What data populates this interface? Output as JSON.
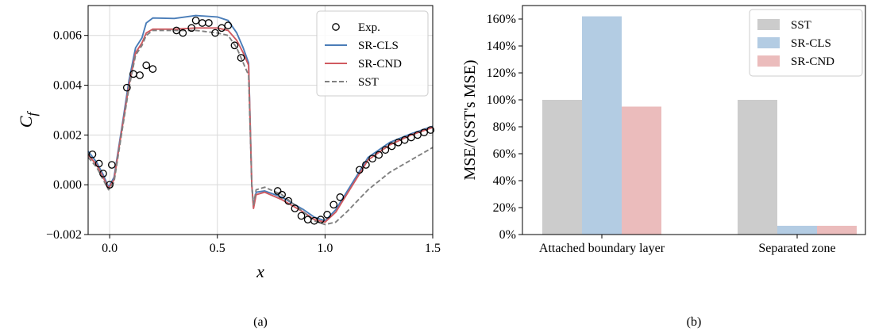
{
  "chart_data": [
    {
      "type": "line",
      "caption": "(a)",
      "xlabel": "x",
      "ylabel": "C",
      "ylabel_sub": "f",
      "xlim": [
        -0.1,
        1.5
      ],
      "ylim": [
        -0.002,
        0.0072
      ],
      "x_ticks": [
        0.0,
        0.5,
        1.0,
        1.5
      ],
      "x_tick_labels": [
        "0.0",
        "0.5",
        "1.0",
        "1.5"
      ],
      "y_ticks": [
        -0.002,
        0.0,
        0.002,
        0.004,
        0.006
      ],
      "y_tick_labels": [
        "−0.002",
        "0.000",
        "0.002",
        "0.004",
        "0.006"
      ],
      "grid": true,
      "legend_position": "top-right",
      "series": [
        {
          "name": "Exp.",
          "style": "markers",
          "color": "#000000",
          "points": [
            [
              -0.08,
              0.00122
            ],
            [
              -0.05,
              0.00085
            ],
            [
              -0.03,
              0.00045
            ],
            [
              0.0,
              0.0
            ],
            [
              0.01,
              0.0008
            ],
            [
              0.08,
              0.0039
            ],
            [
              0.11,
              0.00445
            ],
            [
              0.14,
              0.0044
            ],
            [
              0.17,
              0.0048
            ],
            [
              0.2,
              0.00465
            ],
            [
              0.31,
              0.0062
            ],
            [
              0.34,
              0.0061
            ],
            [
              0.38,
              0.0063
            ],
            [
              0.4,
              0.0066
            ],
            [
              0.43,
              0.0065
            ],
            [
              0.46,
              0.0065
            ],
            [
              0.49,
              0.0061
            ],
            [
              0.52,
              0.0063
            ],
            [
              0.55,
              0.0064
            ],
            [
              0.58,
              0.0056
            ],
            [
              0.61,
              0.0051
            ],
            [
              0.78,
              -0.00025
            ],
            [
              0.8,
              -0.0004
            ],
            [
              0.83,
              -0.00065
            ],
            [
              0.86,
              -0.00095
            ],
            [
              0.89,
              -0.00125
            ],
            [
              0.92,
              -0.0014
            ],
            [
              0.95,
              -0.00145
            ],
            [
              0.98,
              -0.0014
            ],
            [
              1.01,
              -0.0012
            ],
            [
              1.04,
              -0.0008
            ],
            [
              1.07,
              -0.0005
            ],
            [
              1.16,
              0.0006
            ],
            [
              1.19,
              0.0008
            ],
            [
              1.22,
              0.00105
            ],
            [
              1.25,
              0.0012
            ],
            [
              1.28,
              0.0014
            ],
            [
              1.31,
              0.00155
            ],
            [
              1.34,
              0.0017
            ],
            [
              1.37,
              0.0018
            ],
            [
              1.4,
              0.0019
            ],
            [
              1.43,
              0.002
            ],
            [
              1.46,
              0.0021
            ],
            [
              1.49,
              0.0022
            ]
          ]
        },
        {
          "name": "SR-CLS",
          "style": "solid",
          "color": "#4a7db8",
          "points": [
            [
              -0.1,
              0.00135
            ],
            [
              -0.06,
              0.0009
            ],
            [
              -0.03,
              0.0004
            ],
            [
              -0.005,
              -0.0001
            ],
            [
              0.02,
              0.0003
            ],
            [
              0.06,
              0.0025
            ],
            [
              0.09,
              0.0042
            ],
            [
              0.12,
              0.0055
            ],
            [
              0.15,
              0.0059
            ],
            [
              0.17,
              0.0065
            ],
            [
              0.2,
              0.0067
            ],
            [
              0.3,
              0.00668
            ],
            [
              0.4,
              0.0068
            ],
            [
              0.5,
              0.00674
            ],
            [
              0.55,
              0.0066
            ],
            [
              0.59,
              0.0061
            ],
            [
              0.62,
              0.0055
            ],
            [
              0.645,
              0.0049
            ],
            [
              0.66,
              0.0
            ],
            [
              0.668,
              -0.0009
            ],
            [
              0.68,
              -0.0003
            ],
            [
              0.72,
              -0.00025
            ],
            [
              0.8,
              -0.0005
            ],
            [
              0.9,
              -0.001
            ],
            [
              0.95,
              -0.0013
            ],
            [
              1.0,
              -0.00145
            ],
            [
              1.05,
              -0.001
            ],
            [
              1.1,
              -0.0003
            ],
            [
              1.15,
              0.0004
            ],
            [
              1.2,
              0.0011
            ],
            [
              1.3,
              0.0017
            ],
            [
              1.4,
              0.00205
            ],
            [
              1.5,
              0.00235
            ]
          ]
        },
        {
          "name": "SR-CND",
          "style": "solid",
          "color": "#d05a60",
          "points": [
            [
              -0.1,
              0.0012
            ],
            [
              -0.06,
              0.0008
            ],
            [
              -0.03,
              0.0003
            ],
            [
              -0.005,
              -0.00015
            ],
            [
              0.02,
              0.0002
            ],
            [
              0.06,
              0.0024
            ],
            [
              0.09,
              0.004
            ],
            [
              0.12,
              0.0053
            ],
            [
              0.15,
              0.0057
            ],
            [
              0.17,
              0.0061
            ],
            [
              0.2,
              0.00625
            ],
            [
              0.3,
              0.00625
            ],
            [
              0.4,
              0.0063
            ],
            [
              0.5,
              0.0063
            ],
            [
              0.55,
              0.0062
            ],
            [
              0.59,
              0.0058
            ],
            [
              0.62,
              0.0053
            ],
            [
              0.645,
              0.0048
            ],
            [
              0.66,
              0.0
            ],
            [
              0.668,
              -0.00095
            ],
            [
              0.68,
              -0.0004
            ],
            [
              0.72,
              -0.0003
            ],
            [
              0.8,
              -0.0006
            ],
            [
              0.9,
              -0.0011
            ],
            [
              0.95,
              -0.0014
            ],
            [
              1.0,
              -0.0015
            ],
            [
              1.05,
              -0.0011
            ],
            [
              1.1,
              -0.0004
            ],
            [
              1.15,
              0.0003
            ],
            [
              1.2,
              0.001
            ],
            [
              1.3,
              0.0016
            ],
            [
              1.4,
              0.002
            ],
            [
              1.5,
              0.0023
            ]
          ]
        },
        {
          "name": "SST",
          "style": "dashed",
          "color": "#808080",
          "points": [
            [
              -0.1,
              0.0011
            ],
            [
              -0.06,
              0.0007
            ],
            [
              -0.03,
              0.0002
            ],
            [
              -0.005,
              -0.0002
            ],
            [
              0.02,
              0.0001
            ],
            [
              0.06,
              0.0023
            ],
            [
              0.09,
              0.0039
            ],
            [
              0.12,
              0.0052
            ],
            [
              0.15,
              0.0056
            ],
            [
              0.17,
              0.006
            ],
            [
              0.2,
              0.0062
            ],
            [
              0.3,
              0.0062
            ],
            [
              0.4,
              0.0062
            ],
            [
              0.5,
              0.0061
            ],
            [
              0.55,
              0.006
            ],
            [
              0.59,
              0.0055
            ],
            [
              0.62,
              0.0049
            ],
            [
              0.645,
              0.0044
            ],
            [
              0.66,
              0.0
            ],
            [
              0.668,
              -0.0008
            ],
            [
              0.68,
              -0.0002
            ],
            [
              0.72,
              -0.0001
            ],
            [
              0.8,
              -0.0004
            ],
            [
              0.9,
              -0.0011
            ],
            [
              0.95,
              -0.00145
            ],
            [
              1.0,
              -0.0016
            ],
            [
              1.05,
              -0.0015
            ],
            [
              1.1,
              -0.0011
            ],
            [
              1.2,
              -0.0002
            ],
            [
              1.3,
              0.0005
            ],
            [
              1.4,
              0.001
            ],
            [
              1.5,
              0.0015
            ]
          ]
        }
      ]
    },
    {
      "type": "bar",
      "caption": "(b)",
      "xlabel": "",
      "ylabel": "MSE/(SST's MSE)",
      "ylim": [
        0,
        170
      ],
      "y_ticks": [
        0,
        20,
        40,
        60,
        80,
        100,
        120,
        140,
        160
      ],
      "y_tick_labels": [
        "0%",
        "20%",
        "40%",
        "60%",
        "80%",
        "100%",
        "120%",
        "140%",
        "160%"
      ],
      "categories": [
        "Attached boundary layer",
        "Separated zone"
      ],
      "legend_position": "top-right",
      "series": [
        {
          "name": "SST",
          "color": "#cccccc",
          "values": [
            100,
            100
          ]
        },
        {
          "name": "SR-CLS",
          "color": "#b3cce3",
          "values": [
            162,
            6.5
          ]
        },
        {
          "name": "SR-CND",
          "color": "#ebbcbc",
          "values": [
            95,
            6.5
          ]
        }
      ]
    }
  ]
}
